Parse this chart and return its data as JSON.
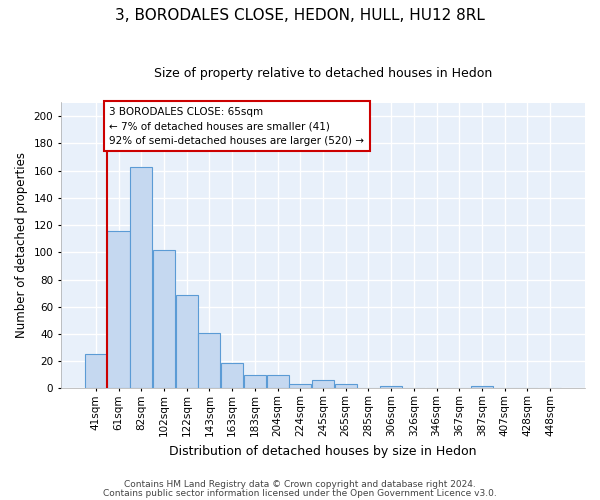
{
  "title1": "3, BORODALES CLOSE, HEDON, HULL, HU12 8RL",
  "title2": "Size of property relative to detached houses in Hedon",
  "xlabel": "Distribution of detached houses by size in Hedon",
  "ylabel": "Number of detached properties",
  "categories": [
    "41sqm",
    "61sqm",
    "82sqm",
    "102sqm",
    "122sqm",
    "143sqm",
    "163sqm",
    "183sqm",
    "204sqm",
    "224sqm",
    "245sqm",
    "265sqm",
    "285sqm",
    "306sqm",
    "326sqm",
    "346sqm",
    "367sqm",
    "387sqm",
    "407sqm",
    "428sqm",
    "448sqm"
  ],
  "values": [
    25,
    116,
    163,
    102,
    69,
    41,
    19,
    10,
    10,
    3,
    6,
    3,
    0,
    2,
    0,
    0,
    0,
    2,
    0,
    0,
    0
  ],
  "bar_color": "#c5d8f0",
  "bar_edge_color": "#5b9bd5",
  "vline_color": "#cc0000",
  "annotation_text": "3 BORODALES CLOSE: 65sqm\n← 7% of detached houses are smaller (41)\n92% of semi-detached houses are larger (520) →",
  "annotation_box_color": "#ffffff",
  "annotation_box_edge": "#cc0000",
  "ylim": [
    0,
    210
  ],
  "yticks": [
    0,
    20,
    40,
    60,
    80,
    100,
    120,
    140,
    160,
    180,
    200
  ],
  "footnote1": "Contains HM Land Registry data © Crown copyright and database right 2024.",
  "footnote2": "Contains public sector information licensed under the Open Government Licence v3.0.",
  "fig_background_color": "#ffffff",
  "plot_background_color": "#e8f0fa",
  "grid_color": "#ffffff",
  "title1_fontsize": 11,
  "title2_fontsize": 9,
  "ylabel_fontsize": 8.5,
  "xlabel_fontsize": 9,
  "tick_fontsize": 7.5,
  "footnote_fontsize": 6.5
}
